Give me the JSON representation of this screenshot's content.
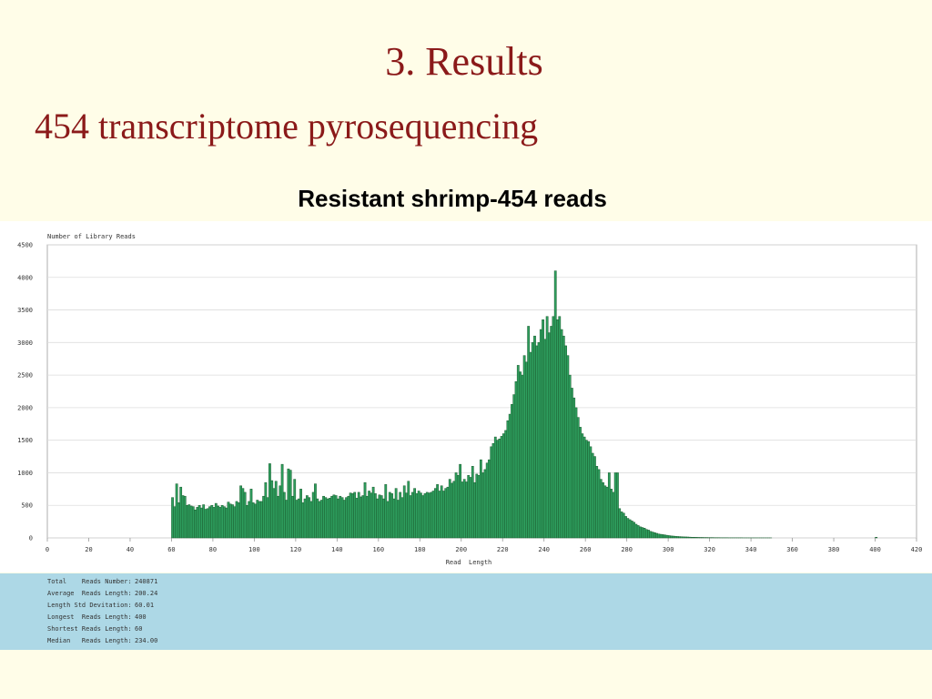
{
  "slide": {
    "title": "3. Results",
    "subtitle": "454 transcriptome pyrosequencing"
  },
  "chart_data": {
    "type": "bar",
    "title": "Resistant shrimp-454 reads",
    "y_label": "Number of Library Reads",
    "x_label": "Read  Length",
    "color": "#2e9e5e",
    "edge_color": "#1a5c2e",
    "grid": true,
    "xlim": [
      0,
      420
    ],
    "ylim": [
      0,
      4500
    ],
    "xticks": [
      0,
      20,
      40,
      60,
      80,
      100,
      120,
      140,
      160,
      180,
      200,
      220,
      240,
      260,
      280,
      300,
      320,
      340,
      360,
      380,
      400,
      420
    ],
    "yticks": [
      0,
      500,
      1000,
      1500,
      2000,
      2500,
      3000,
      3500,
      4000,
      4500
    ],
    "x": [
      60,
      61,
      62,
      63,
      64,
      65,
      66,
      67,
      68,
      69,
      70,
      71,
      72,
      73,
      74,
      75,
      76,
      77,
      78,
      79,
      80,
      81,
      82,
      83,
      84,
      85,
      86,
      87,
      88,
      89,
      90,
      91,
      92,
      93,
      94,
      95,
      96,
      97,
      98,
      99,
      100,
      101,
      102,
      103,
      104,
      105,
      106,
      107,
      108,
      109,
      110,
      111,
      112,
      113,
      114,
      115,
      116,
      117,
      118,
      119,
      120,
      121,
      122,
      123,
      124,
      125,
      126,
      127,
      128,
      129,
      130,
      131,
      132,
      133,
      134,
      135,
      136,
      137,
      138,
      139,
      140,
      141,
      142,
      143,
      144,
      145,
      146,
      147,
      148,
      149,
      150,
      151,
      152,
      153,
      154,
      155,
      156,
      157,
      158,
      159,
      160,
      161,
      162,
      163,
      164,
      165,
      166,
      167,
      168,
      169,
      170,
      171,
      172,
      173,
      174,
      175,
      176,
      177,
      178,
      179,
      180,
      181,
      182,
      183,
      184,
      185,
      186,
      187,
      188,
      189,
      190,
      191,
      192,
      193,
      194,
      195,
      196,
      197,
      198,
      199,
      200,
      201,
      202,
      203,
      204,
      205,
      206,
      207,
      208,
      209,
      210,
      211,
      212,
      213,
      214,
      215,
      216,
      217,
      218,
      219,
      220,
      221,
      222,
      223,
      224,
      225,
      226,
      227,
      228,
      229,
      230,
      231,
      232,
      233,
      234,
      235,
      236,
      237,
      238,
      239,
      240,
      241,
      242,
      243,
      244,
      245,
      246,
      247,
      248,
      249,
      250,
      251,
      252,
      253,
      254,
      255,
      256,
      257,
      258,
      259,
      260,
      261,
      262,
      263,
      264,
      265,
      266,
      267,
      268,
      269,
      270,
      271,
      272,
      273,
      274,
      275,
      276,
      277,
      278,
      279,
      280,
      281,
      282,
      283,
      284,
      285,
      286,
      287,
      288,
      289,
      290,
      291,
      292,
      293,
      294,
      295,
      296,
      297,
      298,
      299,
      300,
      301,
      302,
      303,
      304,
      305,
      306,
      307,
      308,
      309,
      310,
      311,
      312,
      313,
      314,
      315,
      316,
      317,
      318,
      319,
      320,
      321,
      322,
      323,
      324,
      325,
      326,
      327,
      328,
      329,
      330,
      331,
      332,
      333,
      334,
      335,
      336,
      337,
      338,
      339,
      340,
      341,
      342,
      343,
      344,
      345,
      346,
      347,
      348,
      349,
      400
    ],
    "values": [
      620,
      480,
      830,
      540,
      780,
      650,
      640,
      500,
      510,
      490,
      480,
      430,
      470,
      500,
      460,
      510,
      440,
      450,
      480,
      500,
      470,
      530,
      490,
      470,
      500,
      480,
      460,
      550,
      520,
      510,
      480,
      560,
      540,
      800,
      760,
      700,
      500,
      560,
      750,
      540,
      520,
      580,
      560,
      560,
      640,
      850,
      620,
      1140,
      880,
      760,
      870,
      640,
      800,
      1130,
      700,
      580,
      1060,
      1040,
      640,
      900,
      580,
      600,
      750,
      540,
      600,
      650,
      620,
      560,
      700,
      830,
      600,
      560,
      580,
      640,
      620,
      600,
      610,
      640,
      660,
      650,
      600,
      640,
      620,
      580,
      620,
      640,
      690,
      680,
      700,
      610,
      700,
      630,
      650,
      850,
      640,
      720,
      690,
      780,
      680,
      600,
      660,
      650,
      600,
      820,
      560,
      700,
      680,
      600,
      760,
      580,
      700,
      620,
      800,
      690,
      870,
      650,
      700,
      760,
      680,
      720,
      690,
      650,
      680,
      700,
      690,
      700,
      720,
      760,
      820,
      720,
      800,
      720,
      760,
      780,
      900,
      840,
      870,
      1000,
      960,
      1130,
      860,
      900,
      860,
      960,
      930,
      1100,
      850,
      980,
      960,
      1200,
      1000,
      1050,
      1150,
      1200,
      1400,
      1450,
      1550,
      1500,
      1520,
      1560,
      1600,
      1650,
      1800,
      1900,
      2050,
      2200,
      2400,
      2650,
      2550,
      2500,
      2800,
      2700,
      3250,
      2850,
      3000,
      3100,
      2950,
      3000,
      3200,
      3350,
      3050,
      3400,
      3150,
      3250,
      3400,
      4100,
      3350,
      3400,
      3200,
      3100,
      2950,
      2800,
      2500,
      2300,
      2150,
      2000,
      1850,
      1700,
      1600,
      1550,
      1500,
      1480,
      1400,
      1300,
      1250,
      1100,
      1050,
      900,
      850,
      800,
      780,
      1000,
      750,
      700,
      1000,
      1000,
      450,
      400,
      380,
      330,
      300,
      280,
      260,
      240,
      210,
      190,
      170,
      160,
      150,
      130,
      120,
      100,
      90,
      80,
      70,
      60,
      55,
      50,
      45,
      40,
      35,
      30,
      28,
      25,
      22,
      20,
      18,
      16,
      15,
      14,
      12,
      10,
      10,
      9,
      8,
      7,
      7,
      6,
      6,
      5,
      5,
      5,
      4,
      4,
      4,
      3,
      3,
      3,
      3,
      2,
      2,
      2,
      2,
      2,
      2,
      2,
      1,
      1,
      1,
      1,
      1,
      1,
      1,
      1,
      1,
      1,
      1,
      1,
      1,
      1,
      10
    ]
  },
  "stats": [
    [
      "Total    Reads Number:",
      "240871"
    ],
    [
      "Average  Reads Length:",
      "200.24"
    ],
    [
      "Length Std Devitation:",
      "60.01"
    ],
    [
      "Longest  Reads Length:",
      "400"
    ],
    [
      "Shortest Reads Length:",
      "60"
    ],
    [
      "Median   Reads Length:",
      "234.00"
    ]
  ]
}
